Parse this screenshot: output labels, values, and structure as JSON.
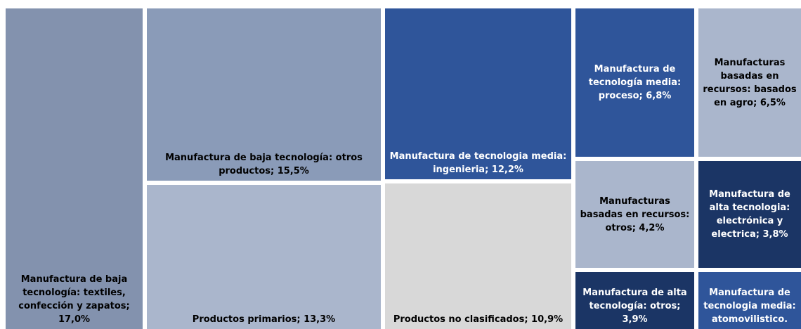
{
  "chart_data": {
    "type": "treemap",
    "items": [
      {
        "label": "Manufactura de baja tecnología: textiles, confección y zapatos; 17,0%",
        "value": 17.0,
        "color": "#8392ae",
        "text_color": "#000000"
      },
      {
        "label": "Manufactura de baja tecnología: otros productos; 15,5%",
        "value": 15.5,
        "color": "#8a9bb8",
        "text_color": "#000000"
      },
      {
        "label": "Productos primarios; 13,3%",
        "value": 13.3,
        "color": "#aab6cc",
        "text_color": "#000000"
      },
      {
        "label": "Manufactura de tecnologia media: ingenieria; 12,2%",
        "value": 12.2,
        "color": "#2f559a",
        "text_color": "#ffffff"
      },
      {
        "label": "Productos no clasificados; 10,9%",
        "value": 10.9,
        "color": "#d8d8d8",
        "text_color": "#000000"
      },
      {
        "label": "Manufactura de tecnología media: proceso; 6,8%",
        "value": 6.8,
        "color": "#2f559a",
        "text_color": "#ffffff"
      },
      {
        "label": "Manufacturas basadas en recursos: basados en agro; 6,5%",
        "value": 6.5,
        "color": "#aab6cc",
        "text_color": "#000000"
      },
      {
        "label": "Manufacturas basadas en recursos: otros; 4,2%",
        "value": 4.2,
        "color": "#aab6cc",
        "text_color": "#000000"
      },
      {
        "label": "Manufactura de alta tecnologia: electrónica y electrica; 3,8%",
        "value": 3.8,
        "color": "#1b3565",
        "text_color": "#ffffff"
      },
      {
        "label": "Manufactura de alta tecnología: otros; 3,9%",
        "value": 3.9,
        "color": "#1b3565",
        "text_color": "#ffffff"
      },
      {
        "label": "Manufactura de tecnologia media: atomovilistico.",
        "value": 3.3,
        "color": "#2f559a",
        "text_color": "#ffffff"
      }
    ]
  }
}
